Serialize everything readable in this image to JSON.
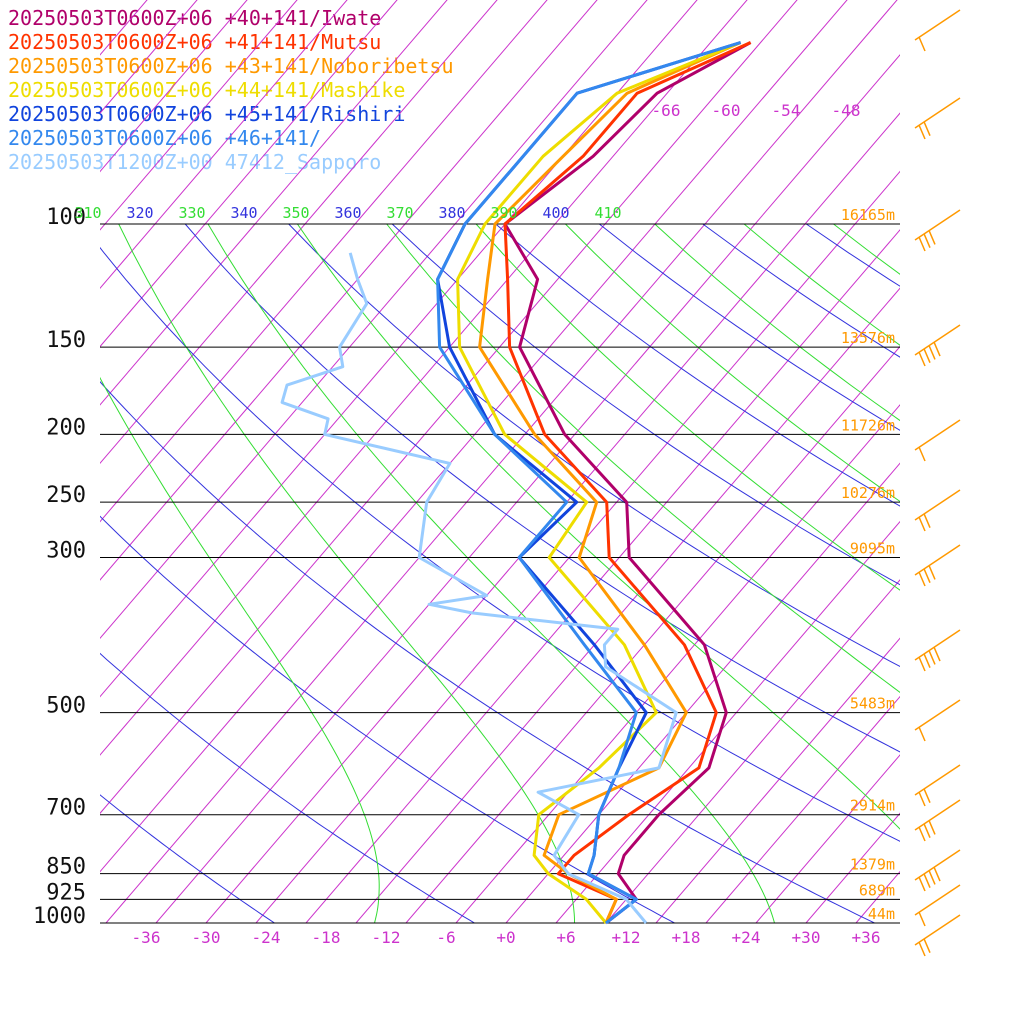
{
  "chart_data": {
    "type": "line",
    "title": "",
    "xlabel": "",
    "ylabel": "",
    "pressure_ticks": [
      100,
      150,
      200,
      250,
      300,
      500,
      700,
      850,
      925,
      1000
    ],
    "temperature_ticks": [
      "-36",
      "-30",
      "-24",
      "-18",
      "-12",
      "-6",
      "+0",
      "+6",
      "+12",
      "+18",
      "+24",
      "+30",
      "+36"
    ],
    "mixing_ratio_labels": [
      "-66",
      "-60",
      "-54",
      "-48"
    ],
    "theta_labels": [
      "310",
      "320",
      "330",
      "340",
      "350",
      "360",
      "370",
      "380",
      "390",
      "400",
      "410"
    ],
    "height_labels": [
      {
        "p": 100,
        "label": "16165m"
      },
      {
        "p": 150,
        "label": "13576m"
      },
      {
        "p": 200,
        "label": "11726m"
      },
      {
        "p": 250,
        "label": "10276m"
      },
      {
        "p": 300,
        "label": "9095m"
      },
      {
        "p": 500,
        "label": "5483m"
      },
      {
        "p": 700,
        "label": "2914m"
      },
      {
        "p": 850,
        "label": "1379m"
      },
      {
        "p": 925,
        "label": "689m"
      },
      {
        "p": 1000,
        "label": "44m"
      }
    ],
    "colors": {
      "pressure_line": "#000000",
      "isotherm": "#cc33cc",
      "theta": "#3333dd",
      "theta_e": "#33dd33",
      "height_label": "#ff9900",
      "wind_barb": "#ff9900",
      "axis_label": "#cc33cc"
    },
    "series": [
      {
        "name": "20250503T0600Z+06 +40+141/Iwate",
        "color": "#b0006a",
        "points": [
          [
            1000,
            10
          ],
          [
            925,
            11
          ],
          [
            850,
            7
          ],
          [
            800,
            6
          ],
          [
            700,
            6
          ],
          [
            600,
            7
          ],
          [
            500,
            4
          ],
          [
            400,
            -4
          ],
          [
            300,
            -19
          ],
          [
            250,
            -24
          ],
          [
            200,
            -36
          ],
          [
            150,
            -48
          ],
          [
            120,
            -52
          ],
          [
            100,
            -60
          ],
          [
            80,
            -57
          ],
          [
            65,
            -56
          ],
          [
            55,
            -51
          ]
        ]
      },
      {
        "name": "20250503T0600Z+06 +41+141/Mutsu",
        "color": "#ff3300",
        "points": [
          [
            1000,
            10
          ],
          [
            925,
            9
          ],
          [
            850,
            1
          ],
          [
            800,
            1
          ],
          [
            700,
            3
          ],
          [
            600,
            6
          ],
          [
            500,
            3
          ],
          [
            400,
            -6
          ],
          [
            300,
            -21
          ],
          [
            250,
            -26
          ],
          [
            200,
            -38
          ],
          [
            150,
            -49
          ],
          [
            120,
            -55
          ],
          [
            100,
            -60
          ],
          [
            80,
            -58
          ],
          [
            65,
            -58
          ],
          [
            55,
            -51
          ]
        ]
      },
      {
        "name": "20250503T0600Z+06 +43+141/Noboribetsu",
        "color": "#ff9900",
        "points": [
          [
            1000,
            10
          ],
          [
            925,
            9
          ],
          [
            850,
            2
          ],
          [
            800,
            -2
          ],
          [
            700,
            -4
          ],
          [
            600,
            2
          ],
          [
            500,
            0
          ],
          [
            400,
            -10
          ],
          [
            300,
            -24
          ],
          [
            250,
            -27
          ],
          [
            200,
            -39
          ],
          [
            150,
            -52
          ],
          [
            120,
            -57
          ],
          [
            100,
            -61
          ],
          [
            80,
            -60
          ],
          [
            65,
            -59
          ],
          [
            55,
            -52
          ]
        ]
      },
      {
        "name": "20250503T0600Z+06 +44+141/Mashike",
        "color": "#eedd00",
        "points": [
          [
            1000,
            10
          ],
          [
            925,
            6
          ],
          [
            850,
            0
          ],
          [
            800,
            -3
          ],
          [
            700,
            -6
          ],
          [
            600,
            -4
          ],
          [
            500,
            -3
          ],
          [
            400,
            -12
          ],
          [
            300,
            -27
          ],
          [
            250,
            -28
          ],
          [
            200,
            -42
          ],
          [
            150,
            -54
          ],
          [
            120,
            -60
          ],
          [
            100,
            -62
          ],
          [
            80,
            -62
          ],
          [
            65,
            -60
          ],
          [
            55,
            -52
          ]
        ]
      },
      {
        "name": "20250503T0600Z+06 +45+141/Rishiri",
        "color": "#1144dd",
        "points": [
          [
            1000,
            10
          ],
          [
            925,
            11
          ],
          [
            850,
            4
          ],
          [
            800,
            3
          ],
          [
            700,
            0
          ],
          [
            600,
            -2
          ],
          [
            500,
            -4
          ],
          [
            400,
            -15
          ],
          [
            300,
            -30
          ],
          [
            250,
            -29
          ],
          [
            200,
            -43
          ],
          [
            150,
            -55
          ],
          [
            120,
            -62
          ],
          [
            100,
            -64
          ],
          [
            80,
            -64
          ],
          [
            65,
            -64
          ],
          [
            55,
            -52
          ]
        ]
      },
      {
        "name": "20250503T0600Z+06 +46+141/",
        "color": "#3388ee",
        "points": [
          [
            1000,
            10
          ],
          [
            925,
            11
          ],
          [
            850,
            4
          ],
          [
            800,
            3
          ],
          [
            700,
            0
          ],
          [
            600,
            -2
          ],
          [
            500,
            -5
          ],
          [
            400,
            -16
          ],
          [
            300,
            -30
          ],
          [
            250,
            -30
          ],
          [
            200,
            -43
          ],
          [
            150,
            -56
          ],
          [
            120,
            -62
          ],
          [
            100,
            -64
          ],
          [
            80,
            -64
          ],
          [
            65,
            -64
          ],
          [
            55,
            -52
          ]
        ]
      },
      {
        "name": "20250503T1200Z+00 47412_Sapporo",
        "color": "#99ccff",
        "points": [
          [
            1000,
            14
          ],
          [
            925,
            10
          ],
          [
            850,
            2
          ],
          [
            800,
            -1
          ],
          [
            700,
            -2
          ],
          [
            650,
            -8
          ],
          [
            600,
            2
          ],
          [
            500,
            -1
          ],
          [
            430,
            -12
          ],
          [
            400,
            -14
          ],
          [
            380,
            -14
          ],
          [
            360,
            -30
          ],
          [
            350,
            -35
          ],
          [
            340,
            -30
          ],
          [
            300,
            -40
          ],
          [
            250,
            -44
          ],
          [
            220,
            -45
          ],
          [
            200,
            -60
          ],
          [
            190,
            -61
          ],
          [
            180,
            -67
          ],
          [
            170,
            -68
          ],
          [
            160,
            -64
          ],
          [
            150,
            -66
          ],
          [
            130,
            -67
          ],
          [
            120,
            -70
          ],
          [
            110,
            -73
          ]
        ]
      }
    ]
  }
}
